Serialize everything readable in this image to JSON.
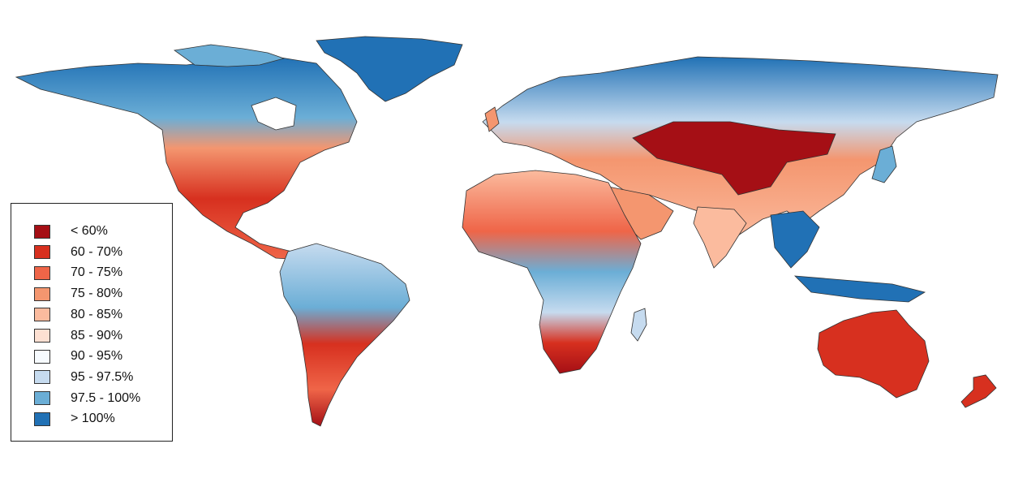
{
  "legend": {
    "items": [
      {
        "label": "< 60%",
        "color": "#a50f15"
      },
      {
        "label": "60 - 70%",
        "color": "#d7301f"
      },
      {
        "label": "70 - 75%",
        "color": "#ef6548"
      },
      {
        "label": "75 - 80%",
        "color": "#f4966f"
      },
      {
        "label": "80 - 85%",
        "color": "#fbbb9e"
      },
      {
        "label": "85 - 90%",
        "color": "#fde0d2"
      },
      {
        "label": "90 - 95%",
        "color": "#f7fbff"
      },
      {
        "label": "95 - 97.5%",
        "color": "#c6dbef"
      },
      {
        "label": "97.5 - 100%",
        "color": "#6baed6"
      },
      {
        "label": "> 100%",
        "color": "#2171b5"
      }
    ]
  },
  "colors": {
    "ocean": "#ffffff",
    "coastline": "#333333"
  }
}
